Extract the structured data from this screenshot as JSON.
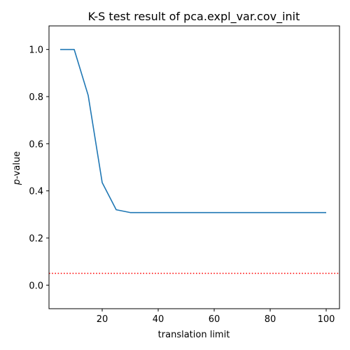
{
  "chart_data": {
    "type": "line",
    "title": "K-S test result of pca.expl_var.cov_init",
    "xlabel": "translation limit",
    "ylabel_italic": "p",
    "ylabel_rest": "-value",
    "xlim": [
      1,
      104.75
    ],
    "ylim": [
      -0.1,
      1.1
    ],
    "xticks": [
      20,
      40,
      60,
      80,
      100
    ],
    "yticks": [
      0.0,
      0.2,
      0.4,
      0.6,
      0.8,
      1.0
    ],
    "xtick_labels": [
      "20",
      "40",
      "60",
      "80",
      "100"
    ],
    "ytick_labels": [
      "0.0",
      "0.2",
      "0.4",
      "0.6",
      "0.8",
      "1.0"
    ],
    "grid": false,
    "series": [
      {
        "color": "#1f77b4",
        "x": [
          5,
          10,
          15,
          20,
          25,
          30,
          35,
          40,
          45,
          50,
          55,
          60,
          65,
          70,
          75,
          80,
          85,
          90,
          95,
          100
        ],
        "y": [
          1.0,
          1.0,
          0.805,
          0.435,
          0.32,
          0.308,
          0.308,
          0.308,
          0.308,
          0.308,
          0.308,
          0.308,
          0.308,
          0.308,
          0.308,
          0.308,
          0.308,
          0.308,
          0.308,
          0.308
        ]
      }
    ],
    "reference_line": {
      "y": 0.05,
      "color": "#ff0000",
      "style": "dotted"
    }
  }
}
